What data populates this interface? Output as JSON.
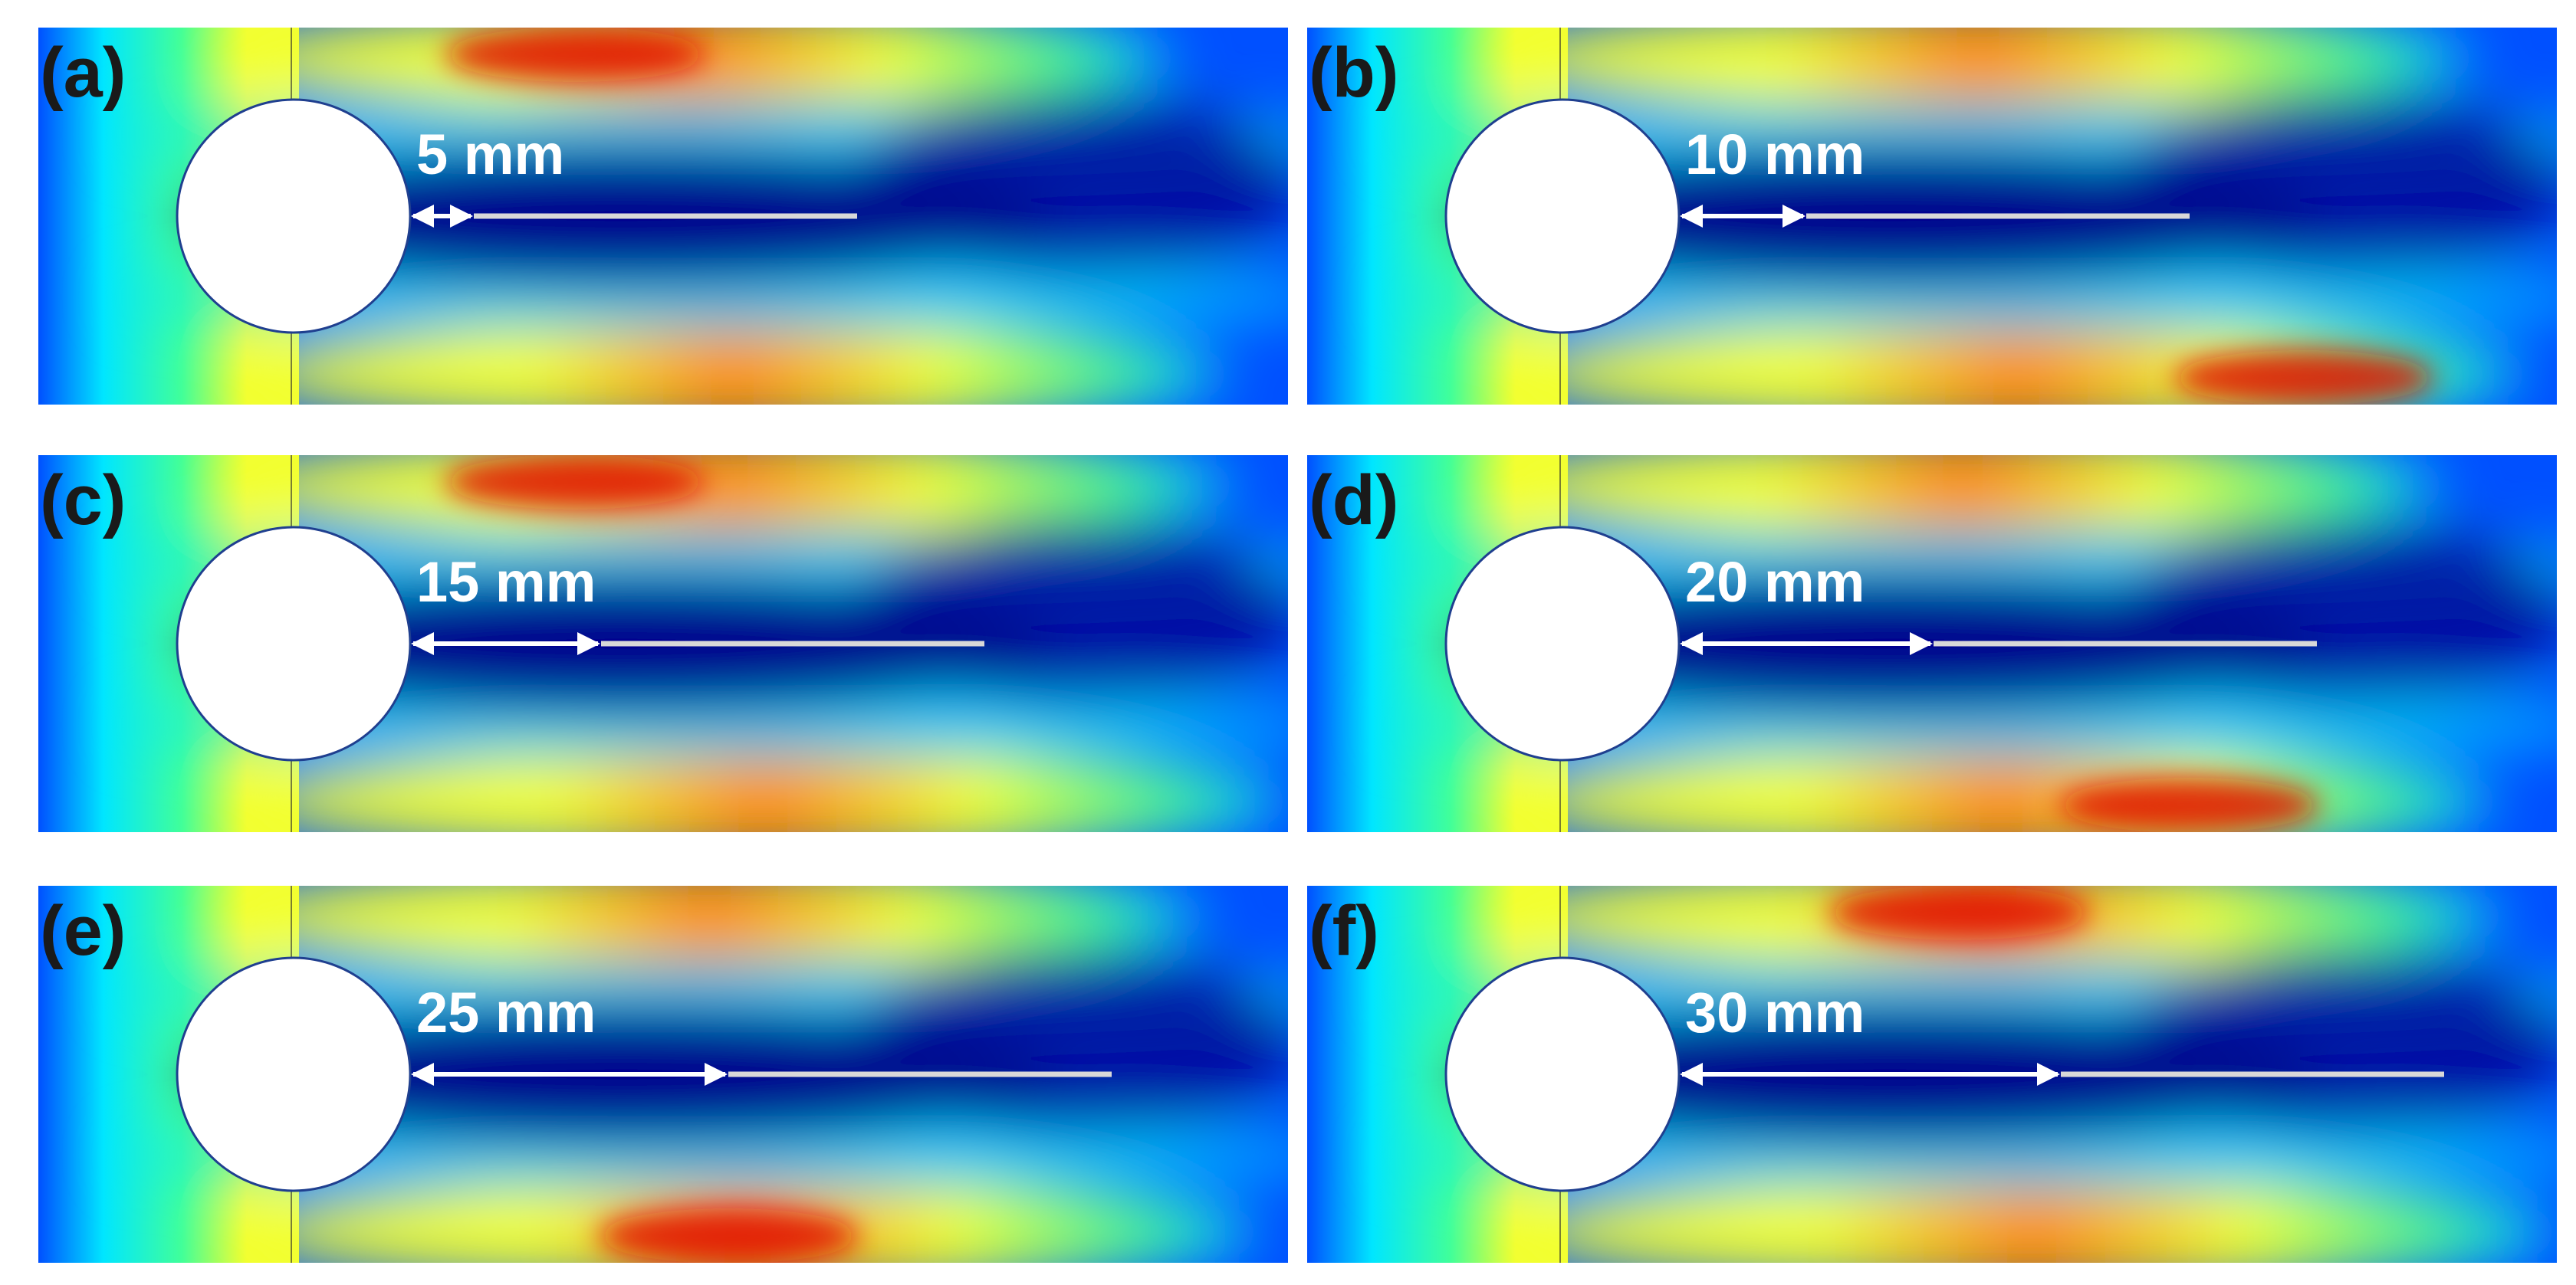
{
  "figure": {
    "panels": [
      {
        "id": "a",
        "label": "(a)",
        "distance_label": "5 mm",
        "distance_mm": 5
      },
      {
        "id": "b",
        "label": "(b)",
        "distance_label": "10 mm",
        "distance_mm": 10
      },
      {
        "id": "c",
        "label": "(c)",
        "distance_label": "15 mm",
        "distance_mm": 15
      },
      {
        "id": "d",
        "label": "(d)",
        "distance_label": "20 mm",
        "distance_mm": 20
      },
      {
        "id": "e",
        "label": "(e)",
        "distance_label": "25 mm",
        "distance_mm": 25
      },
      {
        "id": "f",
        "label": "(f)",
        "distance_label": "30 mm",
        "distance_mm": 30
      }
    ],
    "colormap": [
      "#00008f",
      "#0050ff",
      "#00e6ff",
      "#40ff9a",
      "#f2ff30",
      "#ff8a00",
      "#e01000"
    ],
    "cylinder_fill": "#ffffff",
    "cylinder_edge": "#1f3f8f",
    "plate_color": "#d8d8d8",
    "arrow_color": "#ffffff"
  }
}
